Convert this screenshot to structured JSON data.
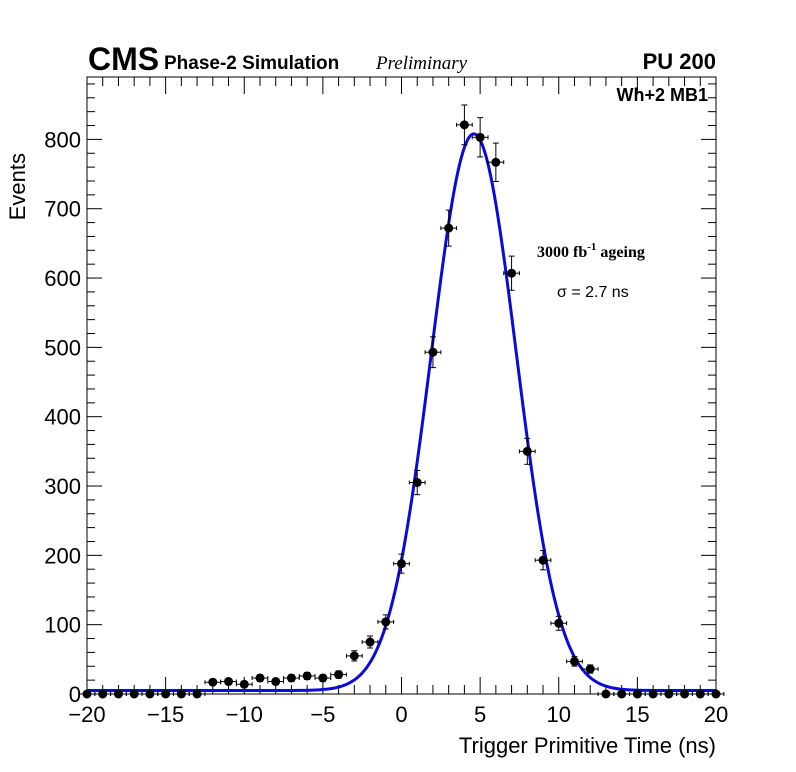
{
  "header": {
    "experiment": "CMS",
    "subtitle": "Phase-2 Simulation",
    "status": "Preliminary",
    "pileup": "PU 200"
  },
  "labels": {
    "chamber": "Wh+2 MB1",
    "ageing_value": "3000 fb",
    "ageing_exponent": "-1",
    "ageing_suffix": " ageing",
    "sigma": "σ = 2.7 ns"
  },
  "colors": {
    "fit": "#0a0ad9",
    "points": "#000000",
    "frame": "#000000"
  },
  "chart_data": {
    "type": "scatter",
    "xlabel": "Trigger Primitive Time (ns)",
    "ylabel": "Events",
    "xlim": [
      -20,
      20
    ],
    "ylim": [
      0,
      890
    ],
    "x_ticks": [
      -20,
      -15,
      -10,
      -5,
      0,
      5,
      10,
      15,
      20
    ],
    "x_tick_labels": [
      "−20",
      "−15",
      "−10",
      "−5",
      "0",
      "5",
      "10",
      "15",
      "20"
    ],
    "y_ticks": [
      0,
      100,
      200,
      300,
      400,
      500,
      600,
      700,
      800
    ],
    "y_tick_labels": [
      "0",
      "100",
      "200",
      "300",
      "400",
      "500",
      "600",
      "700",
      "800"
    ],
    "grid": false,
    "series": [
      {
        "kind": "data",
        "x": [
          -20,
          -19,
          -18,
          -17,
          -16,
          -15,
          -14,
          -13,
          -12,
          -11,
          -10,
          -9,
          -8,
          -7,
          -6,
          -5,
          -4,
          -3,
          -2,
          -1,
          0,
          1,
          2,
          3,
          4,
          5,
          6,
          7,
          8,
          9,
          10,
          11,
          12,
          13,
          14,
          15,
          16,
          17,
          18,
          19,
          20
        ],
        "y": [
          0,
          0,
          0,
          0,
          0,
          0,
          0,
          0,
          17,
          18,
          14,
          23,
          18,
          23,
          26,
          23,
          28,
          55,
          75,
          104,
          188,
          305,
          493,
          672,
          821,
          803,
          767,
          607,
          350,
          193,
          102,
          47,
          36,
          0,
          0,
          0,
          0,
          0,
          0,
          0,
          0
        ]
      },
      {
        "kind": "fit",
        "function": "gaussian",
        "mean": 4.6,
        "sigma": 2.7,
        "amplitude": 803,
        "baseline": 5
      }
    ]
  }
}
